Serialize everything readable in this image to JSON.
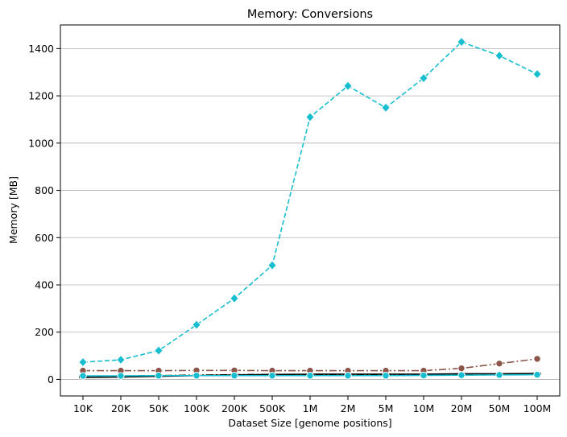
{
  "chart_data": {
    "type": "line",
    "title": "Memory:  Conversions",
    "xlabel": "Dataset Size  [genome positions]",
    "ylabel": "Memory  [MB]",
    "categories": [
      "10K",
      "20K",
      "50K",
      "100K",
      "200K",
      "500K",
      "1M",
      "2M",
      "5M",
      "10M",
      "20M",
      "50M",
      "100M"
    ],
    "ylim": [
      -70,
      1500
    ],
    "yticks": [
      0,
      200,
      400,
      600,
      800,
      1000,
      1200,
      1400
    ],
    "grid": "horizontal",
    "series": [
      {
        "color": "#17becf",
        "dash": "dashed",
        "marker": "diamond",
        "values": [
          73,
          83,
          122,
          231,
          343,
          483,
          1110,
          1242,
          1150,
          1275,
          1428,
          1370,
          1292
        ]
      },
      {
        "color": "#8c564b",
        "dash": "dashdot",
        "marker": "circle",
        "values": [
          37,
          37,
          37,
          38,
          38,
          37,
          37,
          37,
          37,
          37,
          47,
          67,
          87
        ]
      },
      {
        "color": "#000000",
        "dash": "solid",
        "marker": "line",
        "values": [
          9,
          10,
          13,
          16,
          19,
          21,
          22,
          22,
          22,
          22,
          24,
          24,
          25
        ]
      },
      {
        "color": "#000000",
        "dash": "dashdot",
        "marker": "line",
        "values": [
          13,
          14,
          16,
          18,
          20,
          21,
          21,
          21,
          21,
          21,
          22,
          22,
          23
        ]
      },
      {
        "color": "#17becf",
        "dash": "solid",
        "marker": "circle",
        "values": [
          15,
          15,
          16,
          16,
          16,
          16,
          16,
          16,
          16,
          17,
          18,
          19,
          20
        ]
      }
    ]
  }
}
